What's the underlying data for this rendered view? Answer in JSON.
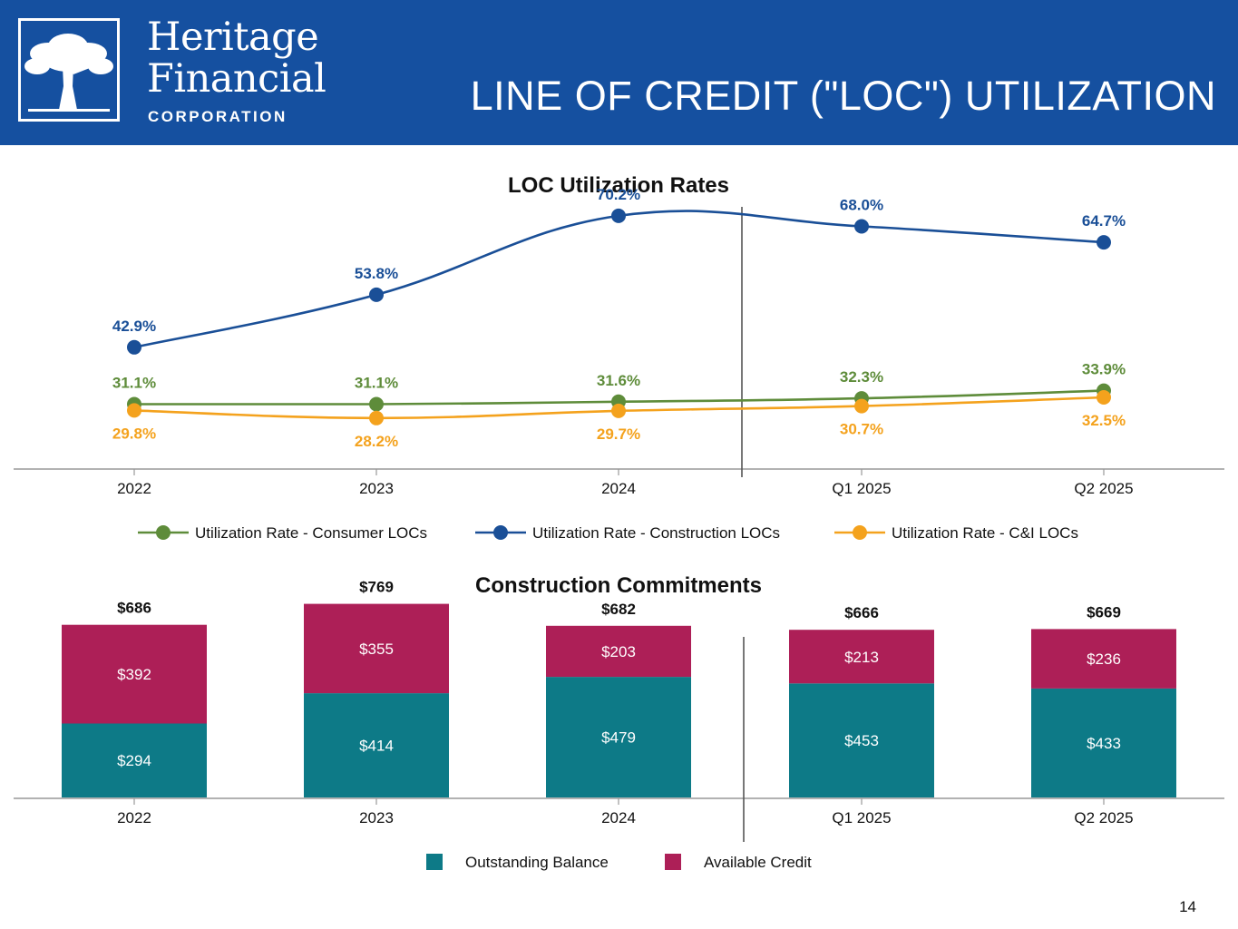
{
  "header": {
    "logo_name_line1": "Heritage",
    "logo_name_line2": "Financial",
    "logo_sub": "CORPORATION",
    "title": "LINE OF CREDIT (\"LOC\") UTILIZATION"
  },
  "colors": {
    "header_bg": "#1550a0",
    "consumer": "#5e8c3a",
    "construction": "#1a4f97",
    "ci": "#f4a21d",
    "outstanding": "#0d7a87",
    "available": "#ad1f57"
  },
  "chart_data": [
    {
      "type": "line",
      "title": "LOC Utilization Rates",
      "categories": [
        "2022",
        "2023",
        "2024",
        "Q1 2025",
        "Q2 2025"
      ],
      "series": [
        {
          "name": "Utilization Rate - Consumer LOCs",
          "values": [
            31.1,
            31.1,
            31.6,
            32.3,
            33.9
          ],
          "labels": [
            "31.1%",
            "31.1%",
            "31.6%",
            "32.3%",
            "33.9%"
          ],
          "label_position": "above"
        },
        {
          "name": "Utilization Rate - Construction LOCs",
          "values": [
            42.9,
            53.8,
            70.2,
            68.0,
            64.7
          ],
          "labels": [
            "42.9%",
            "53.8%",
            "70.2%",
            "68.0%",
            "64.7%"
          ],
          "label_position": "above"
        },
        {
          "name": "Utilization Rate - C&I LOCs",
          "values": [
            29.8,
            28.2,
            29.7,
            30.7,
            32.5
          ],
          "labels": [
            "29.8%",
            "28.2%",
            "29.7%",
            "30.7%",
            "32.5%"
          ],
          "label_position": "below"
        }
      ],
      "ylim": [
        18,
        73
      ],
      "divider_after_category": "2024",
      "legend": "bottom"
    },
    {
      "type": "bar",
      "stacked": true,
      "title": "Construction Commitments",
      "categories": [
        "2022",
        "2023",
        "2024",
        "Q1 2025",
        "Q2 2025"
      ],
      "series": [
        {
          "name": "Outstanding Balance",
          "values": [
            294,
            414,
            479,
            453,
            433
          ],
          "labels": [
            "$294",
            "$414",
            "$479",
            "$453",
            "$433"
          ]
        },
        {
          "name": "Available Credit",
          "values": [
            392,
            355,
            203,
            213,
            236
          ],
          "labels": [
            "$392",
            "$355",
            "$203",
            "$213",
            "$236"
          ]
        }
      ],
      "totals": [
        686,
        769,
        682,
        666,
        669
      ],
      "total_labels": [
        "$686",
        "$769",
        "$682",
        "$666",
        "$669"
      ],
      "ylim": [
        0,
        865
      ],
      "divider_after_category": "2024",
      "legend": "bottom"
    }
  ],
  "footer": {
    "page_number": "14"
  }
}
